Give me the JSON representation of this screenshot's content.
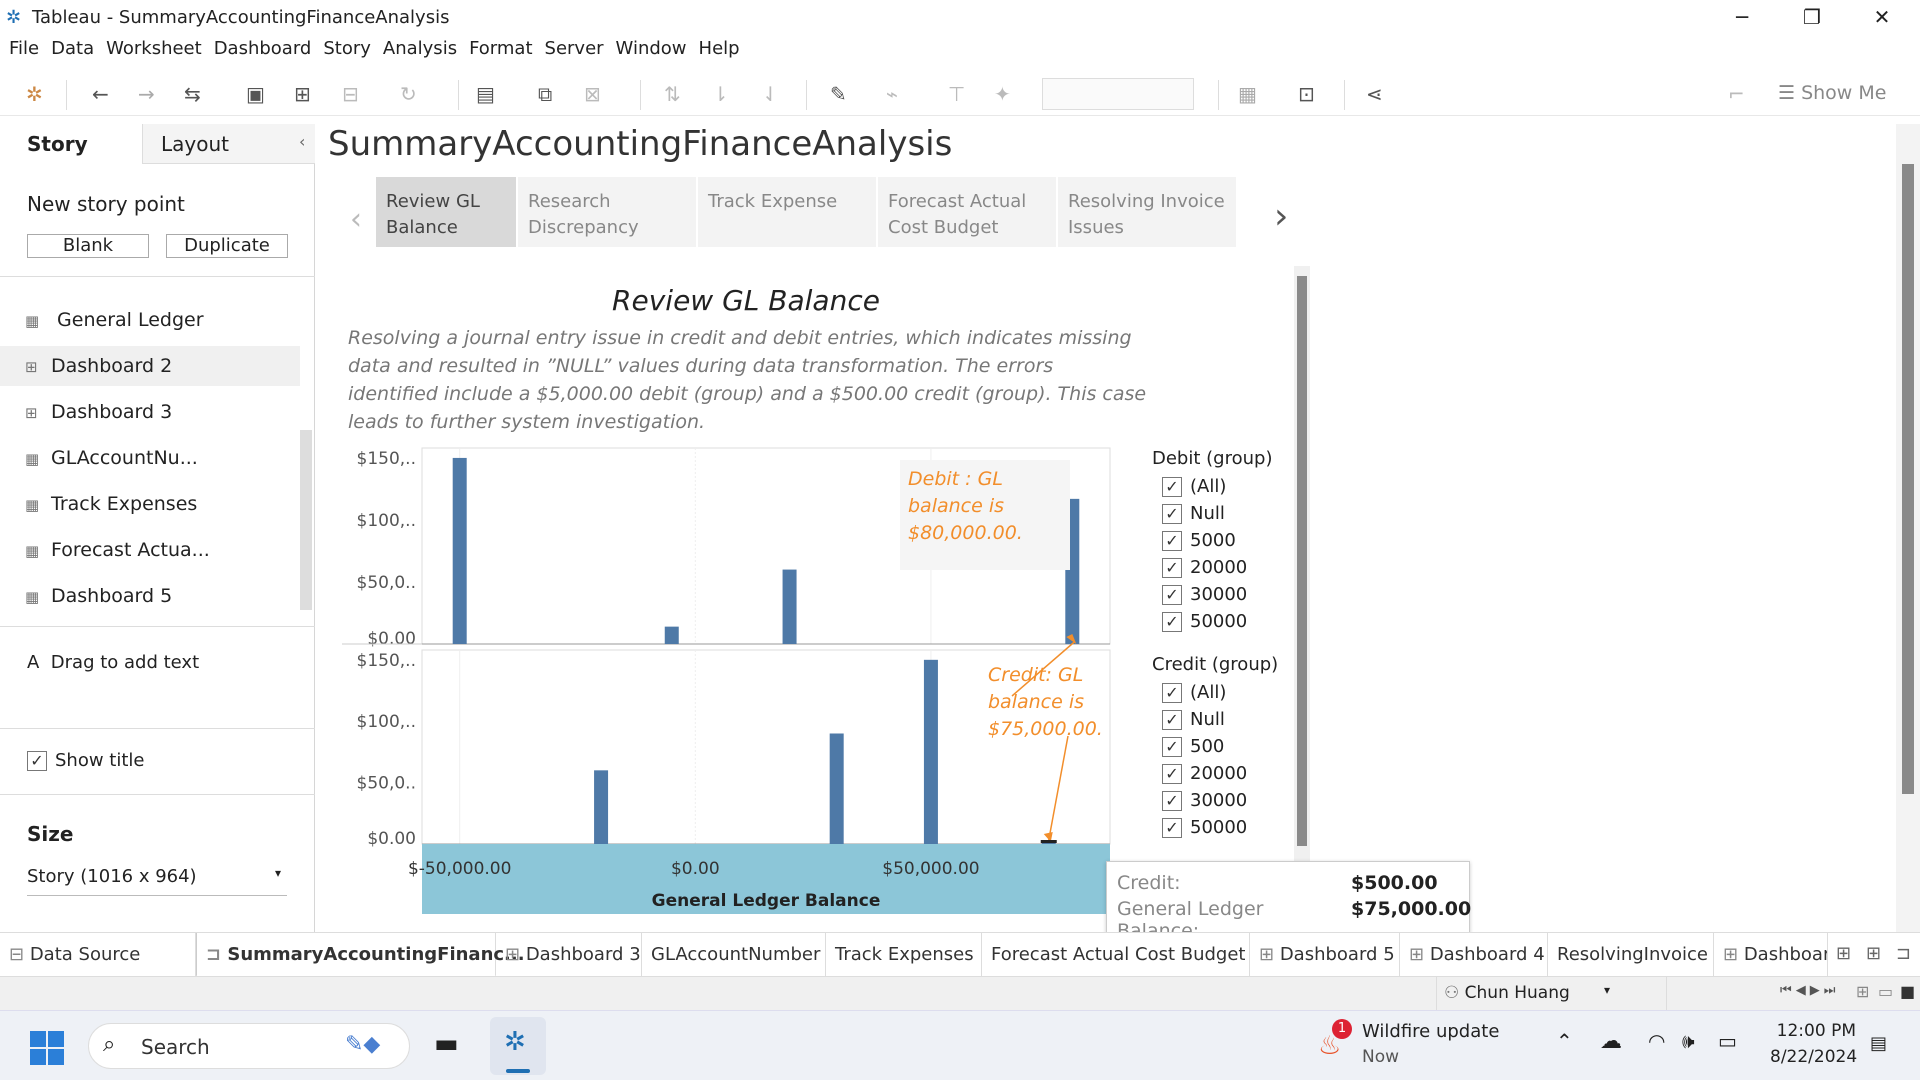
{
  "window": {
    "title": "Tableau - SummaryAccountingFinanceAnalysis"
  },
  "menu": [
    "File",
    "Data",
    "Worksheet",
    "Dashboard",
    "Story",
    "Analysis",
    "Format",
    "Server",
    "Window",
    "Help"
  ],
  "toolbar": {
    "show_me": "Show Me"
  },
  "left_panel": {
    "tab_story": "Story",
    "tab_layout": "Layout",
    "new_story_point": "New story point",
    "blank": "Blank",
    "duplicate": "Duplicate",
    "sheets": [
      "General Ledger",
      "Dashboard 2",
      "Dashboard 3",
      "GLAccountNu...",
      "Track Expenses",
      "Forecast Actua...",
      "Dashboard 5"
    ],
    "drag_text": "Drag to add text",
    "drag_icon": "A",
    "show_title": "Show title",
    "size_label": "Size",
    "size_value": "Story (1016 x 964)"
  },
  "story": {
    "title": "SummaryAccountingFinanceAnalysis",
    "points": [
      "Review GL Balance",
      "Research Discrepancy",
      "Track Expense",
      "Forecast Actual Cost Budget",
      "Resolving Invoice Issues"
    ],
    "point_lines": [
      [
        "Review GL",
        "Balance"
      ],
      [
        "Research",
        "Discrepancy"
      ],
      [
        "Track Expense",
        ""
      ],
      [
        "Forecast Actual",
        "Cost Budget"
      ],
      [
        "Resolving Invoice",
        "Issues"
      ]
    ]
  },
  "dashboard": {
    "title": "Review GL Balance",
    "description": [
      "Resolving a journal entry issue in credit and debit entries, which indicates missing",
      "data and resulted in ”NULL” values during data transformation. The errors",
      "identified include a $5,000.00 debit (group) and a $500.00 credit (group). This case",
      "leads to further system investigation."
    ],
    "annotation_debit": [
      "Debit : GL",
      "balance is",
      "$80,000.00."
    ],
    "annotation_credit": [
      "Credit: GL",
      "balance is",
      "$75,000.00."
    ]
  },
  "chart_data": {
    "type": "bar",
    "xlabel": "General Ledger Balance",
    "x_ticks": [
      "$-50,000.00",
      "$0.00",
      "$50,000.00"
    ],
    "xlim": [
      -58000,
      88000
    ],
    "y_ticks": [
      "$0.00",
      "$50,0..",
      "$100,..",
      "$150,.."
    ],
    "ylim": [
      0,
      158000
    ],
    "panels": [
      {
        "name": "Debit",
        "x": [
          -50000,
          -5000,
          20000,
          80000
        ],
        "values": [
          150000,
          14000,
          60000,
          117000
        ]
      },
      {
        "name": "Credit",
        "x": [
          -20000,
          30000,
          50000,
          75000
        ],
        "values": [
          60000,
          90000,
          150000,
          2000
        ]
      }
    ],
    "accent": "#4e79a7"
  },
  "legend": {
    "debit_title": "Debit (group)",
    "debit_items": [
      "(All)",
      "Null",
      "5000",
      "20000",
      "30000",
      "50000"
    ],
    "credit_title": "Credit (group)",
    "credit_items": [
      "(All)",
      "Null",
      "500",
      "20000",
      "30000",
      "50000"
    ]
  },
  "tooltip": {
    "credit_label": "Credit:",
    "credit_value": "$500.00",
    "glb_label": "General Ledger Balance:",
    "glb_value": "$75,000.00"
  },
  "sheet_tabs": [
    "Data Source",
    "SummaryAccountingFinanc...",
    "Dashboard 3",
    "GLAccountNumber",
    "Track Expenses",
    "Forecast Actual Cost Budget",
    "Dashboard 5",
    "Dashboard 4",
    "ResolvingInvoice",
    "Dashboard"
  ],
  "status": {
    "user": "Chun Huang"
  },
  "taskbar": {
    "search": "Search",
    "notif_title": "Wildfire update",
    "notif_sub": "Now",
    "notif_count": "1",
    "time": "12:00 PM",
    "date": "8/22/2024"
  }
}
